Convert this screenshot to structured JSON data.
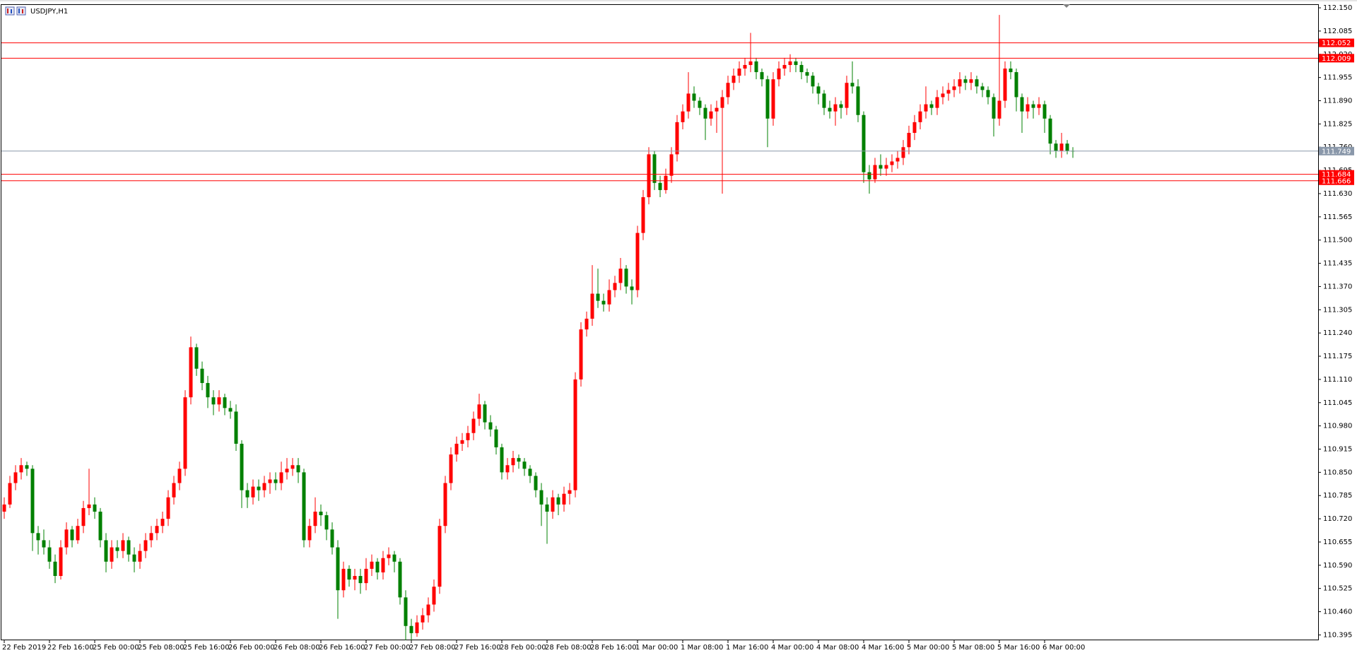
{
  "chart_data": {
    "type": "candlestick",
    "title": "USDJPY,H1",
    "up_color": "#ff0000",
    "down_color": "#008000",
    "level_color": "#ff0000",
    "levels": [
      112.052,
      112.009,
      111.684,
      111.666
    ],
    "bid_color": "#8a98aa",
    "bid": 111.749,
    "ylim": [
      110.38,
      112.16
    ],
    "yticks": [
      {
        "value": 112.15,
        "label": "112.150"
      },
      {
        "value": 112.085,
        "label": "112.085"
      },
      {
        "value": 112.02,
        "label": "112.020"
      },
      {
        "value": 111.955,
        "label": "111.955"
      },
      {
        "value": 111.89,
        "label": "111.890"
      },
      {
        "value": 111.825,
        "label": "111.825"
      },
      {
        "value": 111.76,
        "label": "111.760"
      },
      {
        "value": 111.695,
        "label": "111.695"
      },
      {
        "value": 111.63,
        "label": "111.630"
      },
      {
        "value": 111.565,
        "label": "111.565"
      },
      {
        "value": 111.5,
        "label": "111.500"
      },
      {
        "value": 111.435,
        "label": "111.435"
      },
      {
        "value": 111.37,
        "label": "111.370"
      },
      {
        "value": 111.305,
        "label": "111.305"
      },
      {
        "value": 111.24,
        "label": "111.240"
      },
      {
        "value": 111.175,
        "label": "111.175"
      },
      {
        "value": 111.11,
        "label": "111.110"
      },
      {
        "value": 111.045,
        "label": "111.045"
      },
      {
        "value": 110.98,
        "label": "110.980"
      },
      {
        "value": 110.915,
        "label": "110.915"
      },
      {
        "value": 110.85,
        "label": "110.850"
      },
      {
        "value": 110.785,
        "label": "110.785"
      },
      {
        "value": 110.72,
        "label": "110.720"
      },
      {
        "value": 110.655,
        "label": "110.655"
      },
      {
        "value": 110.59,
        "label": "110.590"
      },
      {
        "value": 110.525,
        "label": "110.525"
      },
      {
        "value": 110.46,
        "label": "110.460"
      },
      {
        "value": 110.395,
        "label": "110.395"
      }
    ],
    "categories": [
      "22 Feb 2019",
      null,
      null,
      null,
      null,
      null,
      null,
      null,
      "22 Feb 16:00",
      null,
      null,
      null,
      null,
      null,
      null,
      null,
      "25 Feb 00:00",
      null,
      null,
      null,
      null,
      null,
      null,
      null,
      "25 Feb 08:00",
      null,
      null,
      null,
      null,
      null,
      null,
      null,
      "25 Feb 16:00",
      null,
      null,
      null,
      null,
      null,
      null,
      null,
      "26 Feb 00:00",
      null,
      null,
      null,
      null,
      null,
      null,
      null,
      "26 Feb 08:00",
      null,
      null,
      null,
      null,
      null,
      null,
      null,
      "26 Feb 16:00",
      null,
      null,
      null,
      null,
      null,
      null,
      null,
      "27 Feb 00:00",
      null,
      null,
      null,
      null,
      null,
      null,
      null,
      "27 Feb 08:00",
      null,
      null,
      null,
      null,
      null,
      null,
      null,
      "27 Feb 16:00",
      null,
      null,
      null,
      null,
      null,
      null,
      null,
      "28 Feb 00:00",
      null,
      null,
      null,
      null,
      null,
      null,
      null,
      "28 Feb 08:00",
      null,
      null,
      null,
      null,
      null,
      null,
      null,
      "28 Feb 16:00",
      null,
      null,
      null,
      null,
      null,
      null,
      null,
      "1 Mar 00:00",
      null,
      null,
      null,
      null,
      null,
      null,
      null,
      "1 Mar 08:00",
      null,
      null,
      null,
      null,
      null,
      null,
      null,
      "1 Mar 16:00",
      null,
      null,
      null,
      null,
      null,
      null,
      null,
      "4 Mar 00:00",
      null,
      null,
      null,
      null,
      null,
      null,
      null,
      "4 Mar 08:00",
      null,
      null,
      null,
      null,
      null,
      null,
      null,
      "4 Mar 16:00",
      null,
      null,
      null,
      null,
      null,
      null,
      null,
      "5 Mar 00:00",
      null,
      null,
      null,
      null,
      null,
      null,
      null,
      "5 Mar 08:00",
      null,
      null,
      null,
      null,
      null,
      null,
      null,
      "5 Mar 16:00",
      null,
      null,
      null,
      null,
      null,
      null,
      null,
      "6 Mar 00:00",
      null,
      null,
      null,
      null,
      null
    ],
    "ohlc": [
      [
        110.74,
        110.78,
        110.72,
        110.76
      ],
      [
        110.76,
        110.84,
        110.75,
        110.82
      ],
      [
        110.82,
        110.87,
        110.8,
        110.85
      ],
      [
        110.85,
        110.89,
        110.83,
        110.87
      ],
      [
        110.87,
        110.88,
        110.84,
        110.86
      ],
      [
        110.86,
        110.87,
        110.63,
        110.68
      ],
      [
        110.68,
        110.7,
        110.62,
        110.66
      ],
      [
        110.66,
        110.69,
        110.62,
        110.64
      ],
      [
        110.64,
        110.66,
        110.58,
        110.6
      ],
      [
        110.6,
        110.62,
        110.54,
        110.56
      ],
      [
        110.56,
        110.66,
        110.55,
        110.64
      ],
      [
        110.64,
        110.71,
        110.62,
        110.69
      ],
      [
        110.69,
        110.7,
        110.64,
        110.66
      ],
      [
        110.66,
        110.72,
        110.65,
        110.7
      ],
      [
        110.7,
        110.77,
        110.68,
        110.75
      ],
      [
        110.75,
        110.86,
        110.73,
        110.76
      ],
      [
        110.76,
        110.78,
        110.72,
        110.74
      ],
      [
        110.74,
        110.75,
        110.64,
        110.66
      ],
      [
        110.66,
        110.68,
        110.57,
        110.6
      ],
      [
        110.6,
        110.66,
        110.58,
        110.64
      ],
      [
        110.64,
        110.66,
        110.61,
        110.63
      ],
      [
        110.63,
        110.68,
        110.61,
        110.66
      ],
      [
        110.66,
        110.67,
        110.6,
        110.62
      ],
      [
        110.62,
        110.64,
        110.57,
        110.6
      ],
      [
        110.6,
        110.65,
        110.58,
        110.63
      ],
      [
        110.63,
        110.68,
        110.61,
        110.66
      ],
      [
        110.66,
        110.7,
        110.64,
        110.68
      ],
      [
        110.68,
        110.72,
        110.66,
        110.7
      ],
      [
        110.7,
        110.74,
        110.68,
        110.72
      ],
      [
        110.72,
        110.8,
        110.7,
        110.78
      ],
      [
        110.78,
        110.84,
        110.76,
        110.82
      ],
      [
        110.82,
        110.88,
        110.8,
        110.86
      ],
      [
        110.86,
        111.08,
        110.84,
        111.06
      ],
      [
        111.06,
        111.23,
        111.04,
        111.2
      ],
      [
        111.2,
        111.21,
        111.12,
        111.14
      ],
      [
        111.14,
        111.16,
        111.08,
        111.1
      ],
      [
        111.1,
        111.12,
        111.03,
        111.06
      ],
      [
        111.06,
        111.08,
        111.01,
        111.04
      ],
      [
        111.04,
        111.08,
        111.02,
        111.06
      ],
      [
        111.06,
        111.07,
        111.01,
        111.03
      ],
      [
        111.03,
        111.05,
        111.0,
        111.02
      ],
      [
        111.02,
        111.04,
        110.91,
        110.93
      ],
      [
        110.93,
        110.94,
        110.75,
        110.8
      ],
      [
        110.8,
        110.82,
        110.75,
        110.78
      ],
      [
        110.78,
        110.83,
        110.76,
        110.81
      ],
      [
        110.81,
        110.83,
        110.77,
        110.8
      ],
      [
        110.8,
        110.84,
        110.78,
        110.82
      ],
      [
        110.82,
        110.85,
        110.79,
        110.83
      ],
      [
        110.83,
        110.85,
        110.8,
        110.82
      ],
      [
        110.82,
        110.88,
        110.8,
        110.85
      ],
      [
        110.85,
        110.89,
        110.83,
        110.86
      ],
      [
        110.86,
        110.89,
        110.84,
        110.87
      ],
      [
        110.87,
        110.89,
        110.82,
        110.85
      ],
      [
        110.85,
        110.86,
        110.64,
        110.66
      ],
      [
        110.66,
        110.72,
        110.64,
        110.7
      ],
      [
        110.7,
        110.78,
        110.68,
        110.74
      ],
      [
        110.74,
        110.76,
        110.7,
        110.73
      ],
      [
        110.73,
        110.74,
        110.66,
        110.69
      ],
      [
        110.69,
        110.71,
        110.62,
        110.64
      ],
      [
        110.64,
        110.66,
        110.44,
        110.52
      ],
      [
        110.52,
        110.6,
        110.5,
        110.58
      ],
      [
        110.58,
        110.59,
        110.53,
        110.55
      ],
      [
        110.55,
        110.58,
        110.52,
        110.56
      ],
      [
        110.56,
        110.58,
        110.51,
        110.54
      ],
      [
        110.54,
        110.61,
        110.52,
        110.58
      ],
      [
        110.58,
        110.62,
        110.56,
        110.6
      ],
      [
        110.6,
        110.61,
        110.55,
        110.57
      ],
      [
        110.57,
        110.63,
        110.55,
        110.61
      ],
      [
        110.61,
        110.64,
        110.59,
        110.62
      ],
      [
        110.62,
        110.63,
        110.57,
        110.6
      ],
      [
        110.6,
        110.61,
        110.48,
        110.5
      ],
      [
        110.5,
        110.52,
        110.38,
        110.42
      ],
      [
        110.42,
        110.44,
        110.38,
        110.4
      ],
      [
        110.4,
        110.45,
        110.39,
        110.43
      ],
      [
        110.43,
        110.47,
        110.41,
        110.45
      ],
      [
        110.45,
        110.5,
        110.43,
        110.48
      ],
      [
        110.48,
        110.55,
        110.46,
        110.53
      ],
      [
        110.53,
        110.72,
        110.51,
        110.7
      ],
      [
        110.7,
        110.84,
        110.68,
        110.82
      ],
      [
        110.82,
        110.92,
        110.8,
        110.9
      ],
      [
        110.9,
        110.95,
        110.88,
        110.93
      ],
      [
        110.93,
        110.96,
        110.91,
        110.94
      ],
      [
        110.94,
        110.98,
        110.92,
        110.96
      ],
      [
        110.96,
        111.02,
        110.94,
        111.0
      ],
      [
        111.0,
        111.07,
        110.98,
        111.04
      ],
      [
        111.04,
        111.05,
        110.97,
        110.99
      ],
      [
        110.99,
        111.01,
        110.95,
        110.97
      ],
      [
        110.97,
        110.98,
        110.9,
        110.92
      ],
      [
        110.92,
        110.93,
        110.83,
        110.85
      ],
      [
        110.85,
        110.89,
        110.83,
        110.87
      ],
      [
        110.87,
        110.91,
        110.85,
        110.89
      ],
      [
        110.89,
        110.9,
        110.86,
        110.88
      ],
      [
        110.88,
        110.89,
        110.84,
        110.86
      ],
      [
        110.86,
        110.87,
        110.82,
        110.84
      ],
      [
        110.84,
        110.85,
        110.78,
        110.8
      ],
      [
        110.8,
        110.82,
        110.7,
        110.76
      ],
      [
        110.76,
        110.78,
        110.65,
        110.74
      ],
      [
        110.74,
        110.8,
        110.72,
        110.78
      ],
      [
        110.78,
        110.79,
        110.73,
        110.76
      ],
      [
        110.76,
        110.81,
        110.74,
        110.79
      ],
      [
        110.79,
        110.82,
        110.76,
        110.8
      ],
      [
        110.8,
        111.13,
        110.78,
        111.11
      ],
      [
        111.11,
        111.27,
        111.09,
        111.25
      ],
      [
        111.25,
        111.3,
        111.23,
        111.28
      ],
      [
        111.28,
        111.43,
        111.26,
        111.35
      ],
      [
        111.35,
        111.42,
        111.31,
        111.33
      ],
      [
        111.33,
        111.35,
        111.3,
        111.32
      ],
      [
        111.32,
        111.39,
        111.3,
        111.36
      ],
      [
        111.36,
        111.4,
        111.34,
        111.38
      ],
      [
        111.38,
        111.45,
        111.36,
        111.42
      ],
      [
        111.42,
        111.43,
        111.35,
        111.37
      ],
      [
        111.37,
        111.39,
        111.32,
        111.36
      ],
      [
        111.36,
        111.54,
        111.34,
        111.52
      ],
      [
        111.52,
        111.64,
        111.5,
        111.62
      ],
      [
        111.62,
        111.76,
        111.6,
        111.74
      ],
      [
        111.74,
        111.75,
        111.64,
        111.66
      ],
      [
        111.66,
        111.68,
        111.62,
        111.64
      ],
      [
        111.64,
        111.7,
        111.63,
        111.68
      ],
      [
        111.68,
        111.76,
        111.66,
        111.74
      ],
      [
        111.74,
        111.85,
        111.72,
        111.83
      ],
      [
        111.83,
        111.88,
        111.81,
        111.86
      ],
      [
        111.86,
        111.97,
        111.84,
        111.91
      ],
      [
        111.91,
        111.93,
        111.87,
        111.89
      ],
      [
        111.89,
        111.9,
        111.85,
        111.87
      ],
      [
        111.87,
        111.88,
        111.78,
        111.84
      ],
      [
        111.84,
        111.88,
        111.82,
        111.86
      ],
      [
        111.86,
        111.89,
        111.8,
        111.87
      ],
      [
        111.87,
        111.92,
        111.63,
        111.9
      ],
      [
        111.9,
        111.96,
        111.88,
        111.94
      ],
      [
        111.94,
        111.98,
        111.92,
        111.96
      ],
      [
        111.96,
        112.0,
        111.94,
        111.98
      ],
      [
        111.98,
        112.01,
        111.96,
        111.99
      ],
      [
        111.99,
        112.08,
        111.97,
        112.0
      ],
      [
        112.0,
        112.01,
        111.95,
        111.97
      ],
      [
        111.97,
        111.98,
        111.93,
        111.95
      ],
      [
        111.95,
        111.96,
        111.76,
        111.84
      ],
      [
        111.84,
        111.97,
        111.82,
        111.95
      ],
      [
        111.95,
        112.0,
        111.93,
        111.98
      ],
      [
        111.98,
        112.01,
        111.96,
        111.99
      ],
      [
        111.99,
        112.02,
        111.97,
        112.0
      ],
      [
        112.0,
        112.01,
        111.97,
        111.99
      ],
      [
        111.99,
        112.0,
        111.95,
        111.97
      ],
      [
        111.97,
        111.98,
        111.94,
        111.96
      ],
      [
        111.96,
        111.97,
        111.91,
        111.93
      ],
      [
        111.93,
        111.94,
        111.88,
        111.91
      ],
      [
        111.91,
        111.92,
        111.85,
        111.87
      ],
      [
        111.87,
        111.89,
        111.84,
        111.86
      ],
      [
        111.86,
        111.9,
        111.82,
        111.88
      ],
      [
        111.88,
        111.89,
        111.84,
        111.87
      ],
      [
        111.87,
        111.96,
        111.85,
        111.94
      ],
      [
        111.94,
        112.0,
        111.91,
        111.93
      ],
      [
        111.93,
        111.95,
        111.83,
        111.85
      ],
      [
        111.85,
        111.86,
        111.66,
        111.69
      ],
      [
        111.69,
        111.71,
        111.63,
        111.67
      ],
      [
        111.67,
        111.73,
        111.66,
        111.71
      ],
      [
        111.71,
        111.74,
        111.68,
        111.7
      ],
      [
        111.7,
        111.73,
        111.68,
        111.71
      ],
      [
        111.71,
        111.74,
        111.69,
        111.72
      ],
      [
        111.72,
        111.75,
        111.7,
        111.73
      ],
      [
        111.73,
        111.78,
        111.71,
        111.76
      ],
      [
        111.76,
        111.82,
        111.74,
        111.8
      ],
      [
        111.8,
        111.85,
        111.78,
        111.83
      ],
      [
        111.83,
        111.88,
        111.81,
        111.86
      ],
      [
        111.86,
        111.93,
        111.84,
        111.88
      ],
      [
        111.88,
        111.89,
        111.85,
        111.87
      ],
      [
        111.87,
        111.92,
        111.85,
        111.9
      ],
      [
        111.9,
        111.93,
        111.88,
        111.91
      ],
      [
        111.91,
        111.94,
        111.89,
        111.92
      ],
      [
        111.92,
        111.95,
        111.9,
        111.93
      ],
      [
        111.93,
        111.97,
        111.91,
        111.95
      ],
      [
        111.95,
        111.96,
        111.92,
        111.94
      ],
      [
        111.94,
        111.97,
        111.92,
        111.95
      ],
      [
        111.95,
        111.96,
        111.91,
        111.93
      ],
      [
        111.93,
        111.94,
        111.9,
        111.92
      ],
      [
        111.92,
        111.93,
        111.88,
        111.9
      ],
      [
        111.9,
        111.91,
        111.79,
        111.84
      ],
      [
        111.84,
        112.13,
        111.82,
        111.89
      ],
      [
        111.89,
        112.0,
        111.87,
        111.98
      ],
      [
        111.98,
        112.0,
        111.95,
        111.97
      ],
      [
        111.97,
        111.98,
        111.86,
        111.9
      ],
      [
        111.9,
        111.91,
        111.8,
        111.86
      ],
      [
        111.86,
        111.9,
        111.84,
        111.88
      ],
      [
        111.88,
        111.89,
        111.84,
        111.87
      ],
      [
        111.87,
        111.9,
        111.85,
        111.88
      ],
      [
        111.88,
        111.89,
        111.8,
        111.84
      ],
      [
        111.84,
        111.85,
        111.74,
        111.77
      ],
      [
        111.77,
        111.78,
        111.73,
        111.75
      ],
      [
        111.75,
        111.8,
        111.73,
        111.77
      ],
      [
        111.77,
        111.78,
        111.74,
        111.75
      ],
      [
        111.75,
        111.76,
        111.73,
        111.749
      ]
    ]
  }
}
